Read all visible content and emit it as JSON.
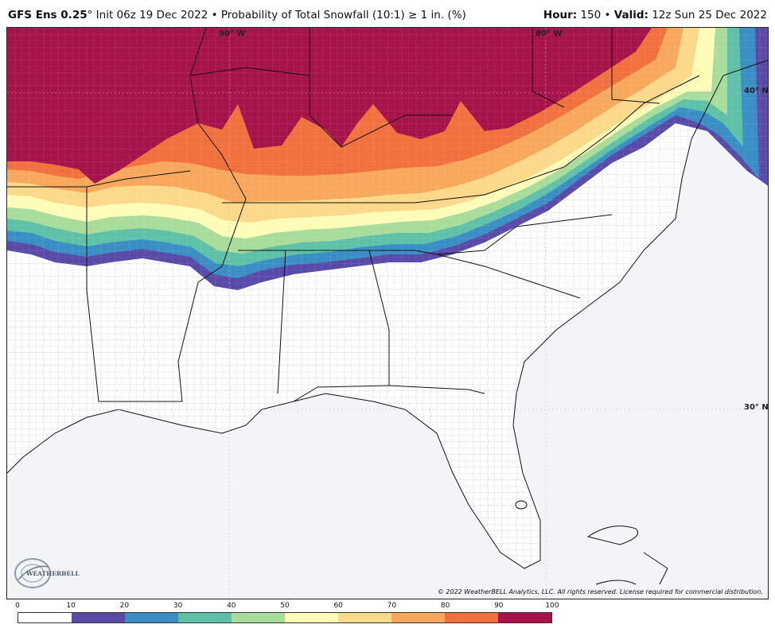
{
  "header": {
    "model": "GFS Ens 0.25",
    "degree": "°",
    "init": "Init 06z 19 Dec 2022",
    "bullet": "•",
    "product": "Probability of Total Snowfall (10:1) ≥ 1 in. (%)",
    "hour_label": "Hour:",
    "hour_value": "150",
    "valid_label": "Valid:",
    "valid_value": "12z Sun 25 Dec 2022"
  },
  "map": {
    "graticule_labels": [
      "90° W",
      "80° W",
      "40° N",
      "30° N"
    ],
    "copyright": "© 2022 WeatherBELL Analytics, LLC. All rights reserved. License required for commercial distribution.",
    "logo_text": "WEATHERBELL",
    "logo_icon": "swirl-logo-icon",
    "colors": {
      "ocean": "#f2f4f8",
      "land": "#ffffff",
      "county_lines": "#9aa0aa",
      "state_lines": "#111111"
    }
  },
  "colorbar": {
    "ticks": [
      "0",
      "10",
      "20",
      "30",
      "40",
      "50",
      "60",
      "70",
      "80",
      "90",
      "100"
    ],
    "colors": [
      "#ffffff",
      "#5a4aa8",
      "#3a8ec4",
      "#5fc0a8",
      "#a8dc9a",
      "#fffcb8",
      "#fcd98a",
      "#f8a85c",
      "#f0703e",
      "#a6124a"
    ]
  }
}
